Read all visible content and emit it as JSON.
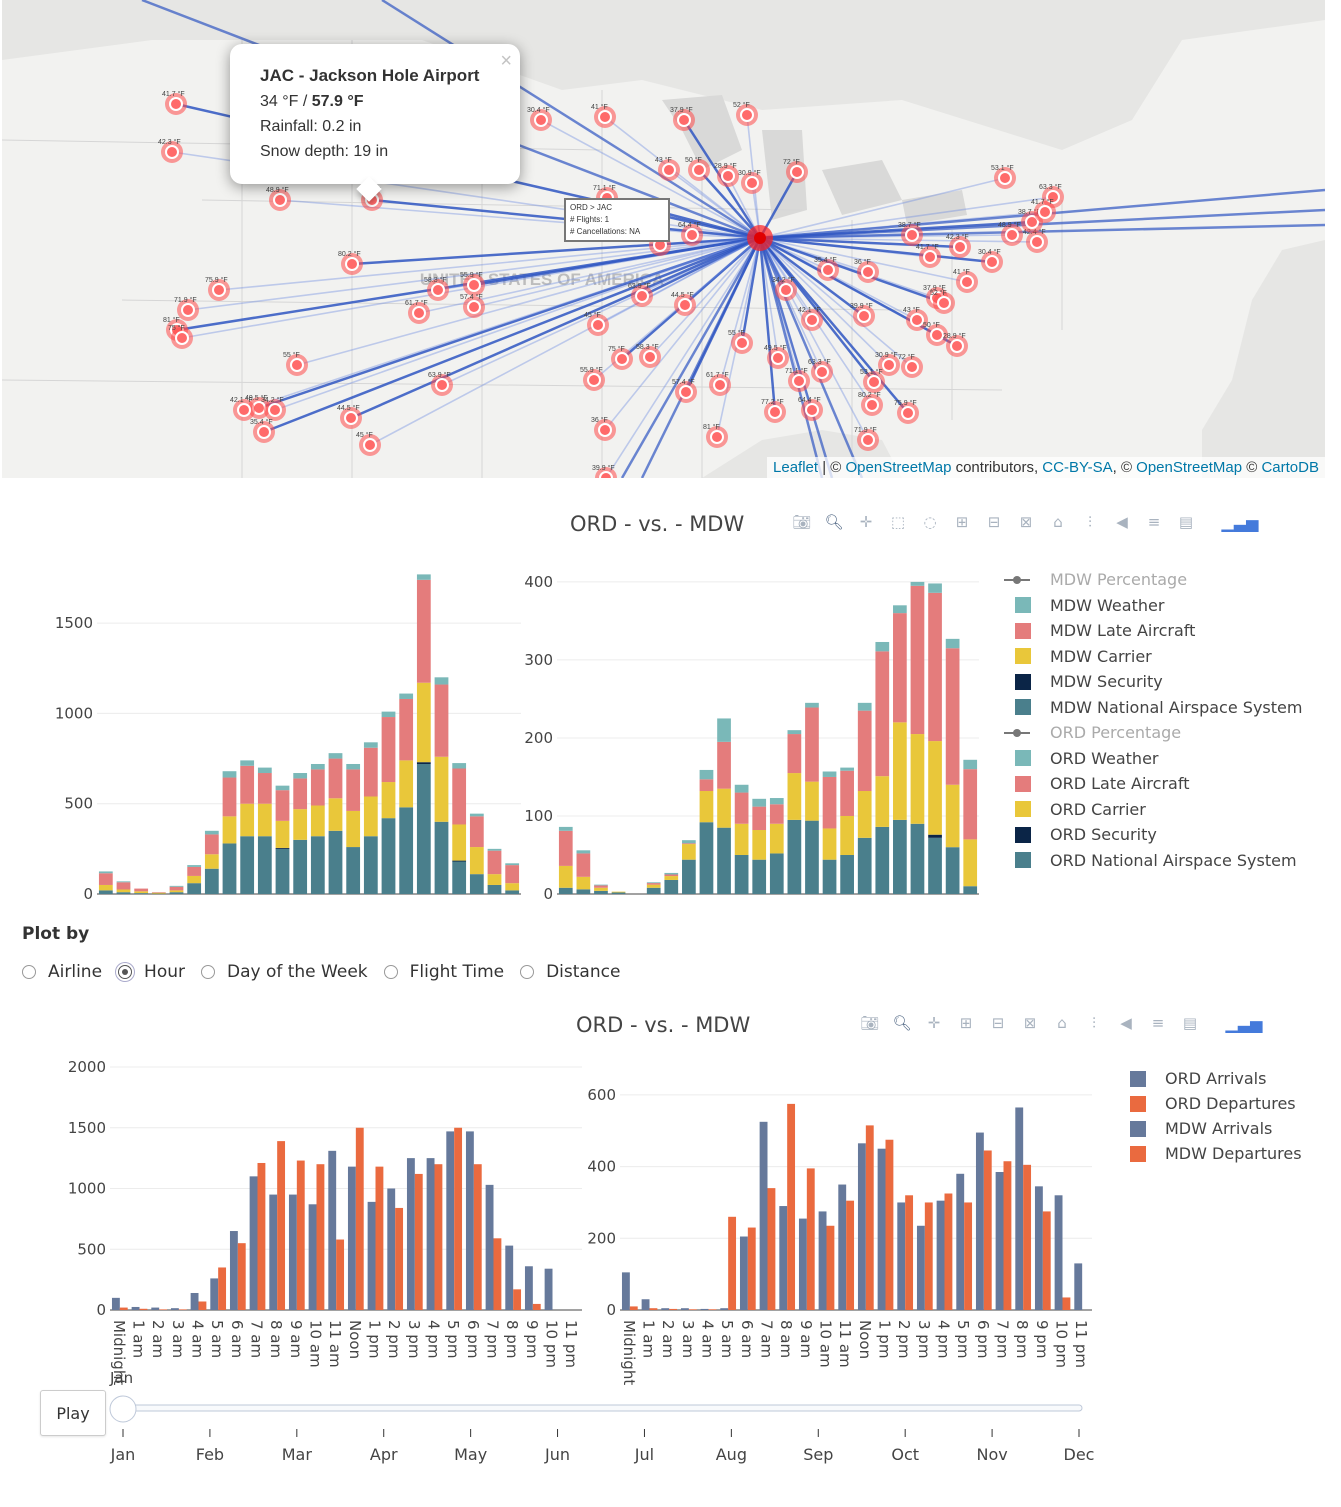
{
  "map": {
    "popup": {
      "title": "JAC - Jackson Hole Airport",
      "temp_low": "34 °F / ",
      "temp_high": "57.9 °F",
      "rainfall": "Rainfall: 0.2 in",
      "snow": "Snow depth: 19 in",
      "close": "×"
    },
    "hover": {
      "route": "ORD > JAC",
      "flights": "# Flights: 1",
      "cancellations": "# Cancellations: NA"
    },
    "attribution": {
      "leaflet": "Leaflet",
      "sep1": " | © ",
      "osm1": "OpenStreetMap",
      "contrib": " contributors, ",
      "ccbysa": "CC-BY-SA",
      "sep2": ", © ",
      "osm2": "OpenStreetMap",
      "sep3": " © ",
      "carto": "CartoDB"
    },
    "country_label": "UNITED STATES OF AMERICA",
    "temps": [
      "41.7 °F",
      "42.3 °F",
      "48.9 °F",
      "42.4 °F",
      "30.4 °F",
      "41 °F",
      "37.9 °F",
      "52 °F",
      "43 °F",
      "50 °F",
      "28.9 °F",
      "30.9 °F",
      "72 °F",
      "53.1 °F",
      "63.3 °F",
      "71.1 °F",
      "77.2 °F",
      "64.4 °F",
      "80.2 °F",
      "75.9 °F",
      "71.9 °F",
      "81 °F",
      "75 °F",
      "58.3 °F",
      "55.9 °F",
      "57.4 °F",
      "61.7 °F",
      "63.9 °F",
      "44.5 °F",
      "45 °F",
      "55 °F",
      "49.5 °F",
      "42.1 °F",
      "34.2 °F",
      "35.4 °F",
      "36 °F",
      "39.9 °F",
      "38.7 °F"
    ]
  },
  "chart1": {
    "title": "ORD - vs. - MDW",
    "legend": [
      {
        "label": "MDW Percentage",
        "type": "line",
        "color": "#777777"
      },
      {
        "label": "MDW Weather",
        "type": "bar",
        "color": "#7ab8b8"
      },
      {
        "label": "MDW Late Aircraft",
        "type": "bar",
        "color": "#e47c7c"
      },
      {
        "label": "MDW Carrier",
        "type": "bar",
        "color": "#e9c73a"
      },
      {
        "label": "MDW Security",
        "type": "bar",
        "color": "#0b2547"
      },
      {
        "label": "MDW National Airspace System",
        "type": "bar",
        "color": "#4a7f8c"
      },
      {
        "label": "ORD Percentage",
        "type": "line",
        "color": "#777777"
      },
      {
        "label": "ORD Weather",
        "type": "bar",
        "color": "#7ab8b8"
      },
      {
        "label": "ORD Late Aircraft",
        "type": "bar",
        "color": "#e47c7c"
      },
      {
        "label": "ORD Carrier",
        "type": "bar",
        "color": "#e9c73a"
      },
      {
        "label": "ORD Security",
        "type": "bar",
        "color": "#0b2547"
      },
      {
        "label": "ORD National Airspace System",
        "type": "bar",
        "color": "#4a7f8c"
      }
    ]
  },
  "plot_by": {
    "label": "Plot by",
    "options": [
      "Airline",
      "Hour",
      "Day of the Week",
      "Flight Time",
      "Distance"
    ],
    "selected": "Hour"
  },
  "chart2": {
    "title": "ORD - vs. - MDW",
    "legend": [
      {
        "label": "ORD Arrivals",
        "color": "#66799b"
      },
      {
        "label": "ORD Departures",
        "color": "#ea6a3f"
      },
      {
        "label": "MDW Arrivals",
        "color": "#66799b"
      },
      {
        "label": "MDW Departures",
        "color": "#ea6a3f"
      }
    ]
  },
  "slider": {
    "play_label": "Play",
    "current": "Jan",
    "months": [
      "Jan",
      "Feb",
      "Mar",
      "Apr",
      "May",
      "Jun",
      "Jul",
      "Aug",
      "Sep",
      "Oct",
      "Nov",
      "Dec"
    ]
  },
  "chart_data": [
    {
      "type": "bar",
      "title": "",
      "barmode": "stack",
      "categories": [
        "Midnight",
        "1 am",
        "2 am",
        "3 am",
        "4 am",
        "5 am",
        "6 am",
        "7 am",
        "8 am",
        "9 am",
        "10 am",
        "11 am",
        "Noon",
        "1 pm",
        "2 pm",
        "3 pm",
        "4 pm",
        "5 pm",
        "6 pm",
        "7 pm",
        "8 pm",
        "9 pm",
        "10 pm",
        "11 pm"
      ],
      "ylim": [
        0,
        1750
      ],
      "yticks": [
        0,
        500,
        1000,
        1500
      ],
      "series": [
        {
          "name": "ORD National Airspace System",
          "color": "#4a7f8c",
          "values": [
            20,
            10,
            5,
            2,
            10,
            60,
            140,
            280,
            320,
            320,
            250,
            300,
            320,
            350,
            260,
            320,
            420,
            480,
            720,
            400,
            180,
            110,
            50,
            20
          ]
        },
        {
          "name": "ORD Security",
          "color": "#0b2547",
          "values": [
            0,
            0,
            0,
            0,
            0,
            0,
            0,
            0,
            0,
            0,
            5,
            0,
            0,
            0,
            0,
            0,
            0,
            0,
            10,
            0,
            5,
            0,
            0,
            0
          ]
        },
        {
          "name": "ORD Carrier",
          "color": "#e9c73a",
          "values": [
            30,
            15,
            10,
            5,
            10,
            40,
            80,
            150,
            180,
            180,
            150,
            170,
            170,
            180,
            200,
            220,
            200,
            260,
            440,
            360,
            200,
            150,
            60,
            40
          ]
        },
        {
          "name": "ORD Late Aircraft",
          "color": "#e47c7c",
          "values": [
            65,
            40,
            15,
            3,
            20,
            50,
            110,
            215,
            210,
            170,
            170,
            170,
            200,
            220,
            230,
            270,
            360,
            340,
            570,
            400,
            310,
            170,
            130,
            100
          ]
        },
        {
          "name": "ORD Weather",
          "color": "#7ab8b8",
          "values": [
            10,
            5,
            0,
            0,
            5,
            10,
            20,
            35,
            30,
            30,
            25,
            30,
            30,
            30,
            30,
            30,
            30,
            30,
            30,
            40,
            30,
            15,
            10,
            10
          ]
        }
      ]
    },
    {
      "type": "bar",
      "title": "",
      "barmode": "stack",
      "categories": [
        "Midnight",
        "1 am",
        "2 am",
        "3 am",
        "4 am",
        "5 am",
        "6 am",
        "7 am",
        "8 am",
        "9 am",
        "10 am",
        "11 am",
        "Noon",
        "1 pm",
        "2 pm",
        "3 pm",
        "4 pm",
        "5 pm",
        "6 pm",
        "7 pm",
        "8 pm",
        "9 pm",
        "10 pm",
        "11 pm"
      ],
      "ylim": [
        0,
        405
      ],
      "yticks": [
        0,
        100,
        200,
        300,
        400
      ],
      "series": [
        {
          "name": "MDW National Airspace System",
          "color": "#4a7f8c",
          "values": [
            8,
            6,
            4,
            2,
            0,
            8,
            18,
            44,
            92,
            85,
            50,
            44,
            52,
            95,
            94,
            44,
            50,
            72,
            86,
            95,
            90,
            72,
            60,
            10
          ]
        },
        {
          "name": "MDW Security",
          "color": "#0b2547",
          "values": [
            0,
            0,
            0,
            0,
            0,
            0,
            0,
            0,
            0,
            0,
            0,
            0,
            0,
            0,
            0,
            0,
            0,
            0,
            0,
            0,
            0,
            4,
            0,
            0
          ]
        },
        {
          "name": "MDW Carrier",
          "color": "#e9c73a",
          "values": [
            28,
            16,
            4,
            1,
            0,
            4,
            5,
            20,
            40,
            50,
            40,
            38,
            38,
            60,
            50,
            40,
            50,
            60,
            65,
            125,
            115,
            120,
            80,
            60
          ]
        },
        {
          "name": "MDW Late Aircraft",
          "color": "#e47c7c",
          "values": [
            45,
            30,
            3,
            0,
            0,
            2,
            2,
            1,
            15,
            60,
            40,
            30,
            25,
            50,
            95,
            66,
            58,
            103,
            160,
            140,
            190,
            190,
            175,
            90
          ]
        },
        {
          "name": "MDW Weather",
          "color": "#7ab8b8",
          "values": [
            5,
            4,
            1,
            0,
            0,
            1,
            2,
            4,
            12,
            30,
            10,
            10,
            8,
            5,
            6,
            7,
            4,
            10,
            12,
            10,
            5,
            12,
            12,
            12
          ]
        }
      ]
    },
    {
      "type": "bar",
      "title": "",
      "barmode": "group",
      "categories": [
        "Midnight",
        "1 am",
        "2 am",
        "3 am",
        "4 am",
        "5 am",
        "6 am",
        "7 am",
        "8 am",
        "9 am",
        "10 am",
        "11 am",
        "Noon",
        "1 pm",
        "2 pm",
        "3 pm",
        "4 pm",
        "5 pm",
        "6 pm",
        "7 pm",
        "8 pm",
        "9 pm",
        "10 pm",
        "11 pm"
      ],
      "ylim": [
        0,
        2000
      ],
      "yticks": [
        0,
        500,
        1000,
        1500,
        2000
      ],
      "series": [
        {
          "name": "ORD Arrivals",
          "color": "#66799b",
          "values": [
            100,
            25,
            20,
            15,
            140,
            260,
            650,
            1100,
            950,
            950,
            870,
            1310,
            1180,
            890,
            1000,
            1250,
            1250,
            1470,
            1470,
            1030,
            530,
            360,
            340,
            0
          ]
        },
        {
          "name": "ORD Departures",
          "color": "#ea6a3f",
          "values": [
            20,
            10,
            5,
            5,
            70,
            350,
            550,
            1210,
            1390,
            1230,
            1200,
            580,
            1500,
            1180,
            840,
            1120,
            1200,
            1500,
            1200,
            590,
            170,
            50,
            0,
            0
          ]
        }
      ]
    },
    {
      "type": "bar",
      "title": "",
      "barmode": "group",
      "categories": [
        "Midnight",
        "1 am",
        "2 am",
        "3 am",
        "4 am",
        "5 am",
        "6 am",
        "7 am",
        "8 am",
        "9 am",
        "10 am",
        "11 am",
        "Noon",
        "1 pm",
        "2 pm",
        "3 pm",
        "4 pm",
        "5 pm",
        "6 pm",
        "7 pm",
        "8 pm",
        "9 pm",
        "10 pm",
        "11 pm"
      ],
      "ylim": [
        0,
        650
      ],
      "yticks": [
        0,
        200,
        400,
        600
      ],
      "series": [
        {
          "name": "MDW Arrivals",
          "color": "#66799b",
          "values": [
            105,
            30,
            5,
            5,
            3,
            5,
            205,
            525,
            290,
            255,
            275,
            350,
            465,
            450,
            300,
            235,
            305,
            380,
            495,
            385,
            565,
            345,
            320,
            130
          ]
        },
        {
          "name": "MDW Departures",
          "color": "#ea6a3f",
          "values": [
            10,
            5,
            3,
            2,
            2,
            260,
            230,
            340,
            575,
            395,
            235,
            305,
            515,
            475,
            320,
            300,
            325,
            300,
            445,
            415,
            405,
            275,
            35,
            0
          ]
        }
      ]
    }
  ]
}
